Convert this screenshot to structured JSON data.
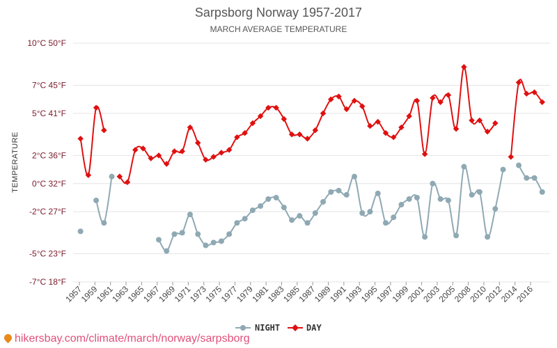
{
  "chart_data": {
    "type": "line",
    "title": "Sarpsborg Norway 1957-2017",
    "subtitle": "MARCH AVERAGE TEMPERATURE",
    "ylabel": "TEMPERATURE",
    "ylim": [
      -7,
      10
    ],
    "y_ticks": [
      {
        "value": 10,
        "label": "10°C 50°F"
      },
      {
        "value": 7,
        "label": "7°C 45°F"
      },
      {
        "value": 5,
        "label": "5°C 41°F"
      },
      {
        "value": 2,
        "label": "2°C 36°F"
      },
      {
        "value": 0,
        "label": "0°C 32°F"
      },
      {
        "value": -2,
        "label": "-2°C 27°F"
      },
      {
        "value": -5,
        "label": "-5°C 23°F"
      },
      {
        "value": -7,
        "label": "-7°C 18°F"
      }
    ],
    "x_tick_labels": [
      "1957",
      "1959",
      "1961",
      "1963",
      "1965",
      "1967",
      "1969",
      "1971",
      "1973",
      "1975",
      "1977",
      "1979",
      "1981",
      "1983",
      "1985",
      "1987",
      "1989",
      "1991",
      "1993",
      "1995",
      "1997",
      "1999",
      "2001",
      "2003",
      "2005",
      "2008",
      "2010",
      "2012",
      "2014",
      "2016"
    ],
    "legend": {
      "placement": "bottom-center"
    },
    "grid": true,
    "series": [
      {
        "name": "NIGHT",
        "color": "#8fa9b3",
        "points": [
          [
            1957,
            -3.4
          ],
          [
            1959,
            -1.2
          ],
          [
            1960,
            -2.8
          ],
          [
            1961,
            0.5
          ],
          [
            1967,
            -4.0
          ],
          [
            1968,
            -4.8
          ],
          [
            1969,
            -3.6
          ],
          [
            1970,
            -3.5
          ],
          [
            1971,
            -2.2
          ],
          [
            1972,
            -3.6
          ],
          [
            1973,
            -4.4
          ],
          [
            1974,
            -4.2
          ],
          [
            1975,
            -4.1
          ],
          [
            1976,
            -3.6
          ],
          [
            1977,
            -2.8
          ],
          [
            1978,
            -2.5
          ],
          [
            1979,
            -1.9
          ],
          [
            1980,
            -1.6
          ],
          [
            1981,
            -1.1
          ],
          [
            1982,
            -1.0
          ],
          [
            1983,
            -1.7
          ],
          [
            1984,
            -2.6
          ],
          [
            1985,
            -2.3
          ],
          [
            1986,
            -2.8
          ],
          [
            1987,
            -2.1
          ],
          [
            1988,
            -1.3
          ],
          [
            1989,
            -0.6
          ],
          [
            1990,
            -0.5
          ],
          [
            1991,
            -0.8
          ],
          [
            1992,
            0.5
          ],
          [
            1993,
            -2.1
          ],
          [
            1994,
            -2.0
          ],
          [
            1995,
            -0.7
          ],
          [
            1996,
            -2.8
          ],
          [
            1997,
            -2.4
          ],
          [
            1998,
            -1.5
          ],
          [
            1999,
            -1.1
          ],
          [
            2000,
            -1.0
          ],
          [
            2001,
            -3.8
          ],
          [
            2002,
            0.0
          ],
          [
            2003,
            -1.1
          ],
          [
            2004,
            -1.2
          ],
          [
            2005,
            -3.7
          ],
          [
            2006,
            1.2
          ],
          [
            2007,
            -0.8
          ],
          [
            2008,
            -0.6
          ],
          [
            2009,
            -3.8
          ],
          [
            2010,
            -1.8
          ],
          [
            2011,
            1.0
          ],
          [
            2013,
            1.3
          ],
          [
            2014,
            0.4
          ],
          [
            2015,
            0.4
          ],
          [
            2016,
            -0.6
          ]
        ]
      },
      {
        "name": "DAY",
        "color": "#e01010",
        "points": [
          [
            1957,
            3.2
          ],
          [
            1958,
            0.6
          ],
          [
            1959,
            5.4
          ],
          [
            1960,
            3.8
          ],
          [
            1962,
            0.5
          ],
          [
            1963,
            0.1
          ],
          [
            1964,
            2.4
          ],
          [
            1965,
            2.5
          ],
          [
            1966,
            1.8
          ],
          [
            1967,
            2.0
          ],
          [
            1968,
            1.4
          ],
          [
            1969,
            2.3
          ],
          [
            1970,
            2.3
          ],
          [
            1971,
            4.0
          ],
          [
            1972,
            2.9
          ],
          [
            1973,
            1.7
          ],
          [
            1974,
            1.9
          ],
          [
            1975,
            2.2
          ],
          [
            1976,
            2.4
          ],
          [
            1977,
            3.3
          ],
          [
            1978,
            3.6
          ],
          [
            1979,
            4.3
          ],
          [
            1980,
            4.8
          ],
          [
            1981,
            5.4
          ],
          [
            1982,
            5.4
          ],
          [
            1983,
            4.6
          ],
          [
            1984,
            3.5
          ],
          [
            1985,
            3.5
          ],
          [
            1986,
            3.2
          ],
          [
            1987,
            3.8
          ],
          [
            1988,
            5.0
          ],
          [
            1989,
            6.0
          ],
          [
            1990,
            6.2
          ],
          [
            1991,
            5.3
          ],
          [
            1992,
            5.9
          ],
          [
            1993,
            5.5
          ],
          [
            1994,
            4.1
          ],
          [
            1995,
            4.4
          ],
          [
            1996,
            3.6
          ],
          [
            1997,
            3.3
          ],
          [
            1998,
            4.0
          ],
          [
            1999,
            4.8
          ],
          [
            2000,
            5.9
          ],
          [
            2001,
            2.1
          ],
          [
            2002,
            6.1
          ],
          [
            2003,
            5.8
          ],
          [
            2004,
            6.3
          ],
          [
            2005,
            3.9
          ],
          [
            2006,
            8.3
          ],
          [
            2007,
            4.5
          ],
          [
            2008,
            4.5
          ],
          [
            2009,
            3.7
          ],
          [
            2010,
            4.3
          ],
          [
            2012,
            1.9
          ],
          [
            2013,
            7.2
          ],
          [
            2014,
            6.4
          ],
          [
            2015,
            6.5
          ],
          [
            2016,
            5.8
          ]
        ]
      }
    ]
  },
  "footer": {
    "text": "hikersbay.com/climate/march/norway/sarpsborg"
  }
}
